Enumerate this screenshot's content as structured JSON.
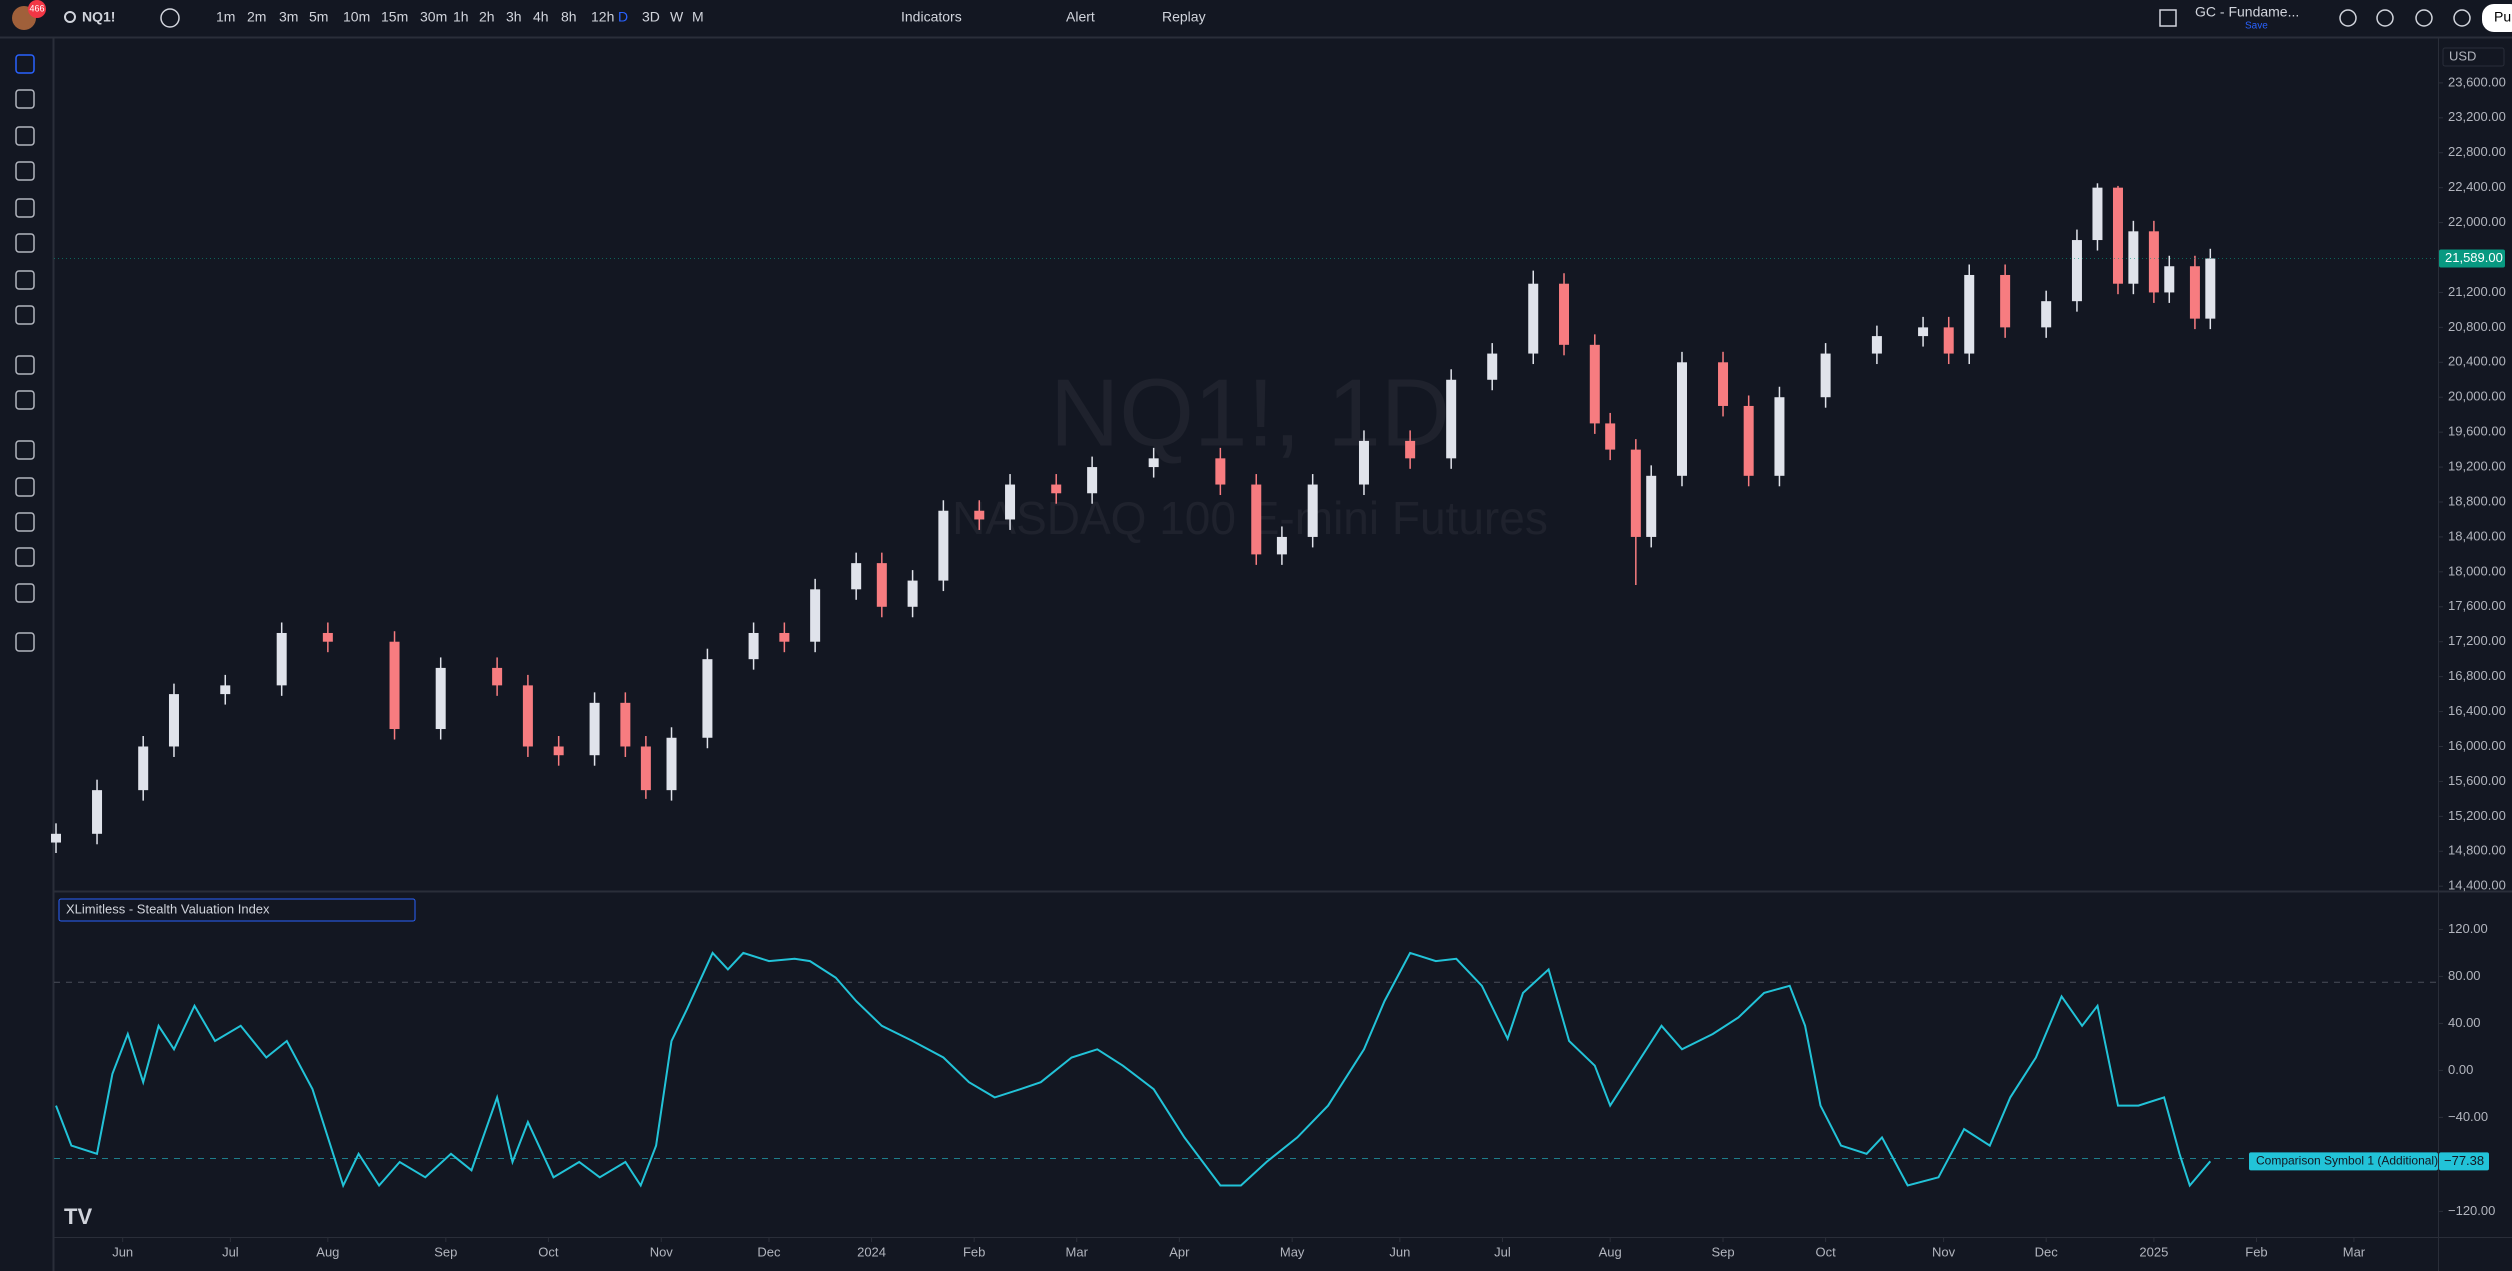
{
  "toolbar": {
    "badge": "466",
    "symbol": "NQ1!",
    "intervals": [
      "1m",
      "2m",
      "3m",
      "5m",
      "10m",
      "15m",
      "30m",
      "1h",
      "2h",
      "3h",
      "4h",
      "8h",
      "12h",
      "D",
      "3D",
      "W",
      "M"
    ],
    "active_interval": "D",
    "indicators": "Indicators",
    "alert": "Alert",
    "replay": "Replay",
    "layout": "GC - Fundame...",
    "layout_status": "Save",
    "publish": "Pu"
  },
  "chart_data": [
    {
      "type": "candlestick",
      "watermark": "NQ1!, 1D",
      "watermark_subtitle": "NASDAQ 100 E-mini Futures",
      "currency": "USD",
      "up_color": "#e0e3eb",
      "down_color": "#f77c80",
      "candles": {
        "x": [
          0,
          8,
          17,
          23,
          33,
          44,
          53,
          66,
          75,
          86,
          92,
          98,
          105,
          111,
          115,
          120,
          127,
          136,
          142,
          148,
          156,
          161,
          167,
          173,
          180,
          186,
          195,
          202,
          214,
          227,
          234,
          239,
          245,
          255,
          264,
          272,
          280,
          288,
          294,
          300,
          303,
          308,
          311,
          317,
          325,
          330,
          336,
          345,
          355,
          364,
          369,
          373,
          380,
          388,
          394,
          398,
          402,
          405,
          409,
          412,
          417,
          420
        ],
        "open": [
          14900,
          15000,
          15500,
          16000,
          16600,
          16700,
          17300,
          17200,
          16200,
          16900,
          16700,
          16000,
          15900,
          16500,
          16000,
          15500,
          16100,
          17000,
          17300,
          17200,
          17800,
          18100,
          17600,
          17900,
          18700,
          18600,
          19000,
          18900,
          19200,
          19300,
          19000,
          18200,
          18400,
          19000,
          19500,
          19300,
          20200,
          20500,
          21300,
          20600,
          19700,
          19400,
          18400,
          19100,
          20400,
          19900,
          19100,
          20000,
          20500,
          20700,
          20800,
          20500,
          21400,
          20800,
          21100,
          21800,
          22400,
          21300,
          21900,
          21200,
          21500,
          20900
        ],
        "high": [
          15120,
          15620,
          16120,
          16720,
          16820,
          17420,
          17420,
          17320,
          17020,
          17020,
          16820,
          16120,
          16620,
          16620,
          16120,
          16220,
          17120,
          17420,
          17420,
          17920,
          18220,
          18220,
          18020,
          18820,
          18820,
          19120,
          19120,
          19320,
          19420,
          19420,
          19120,
          18520,
          19120,
          19620,
          19620,
          20320,
          20620,
          21450,
          21420,
          20720,
          19820,
          19520,
          19220,
          20520,
          20520,
          20020,
          20120,
          20620,
          20820,
          20920,
          20920,
          21520,
          21520,
          21220,
          21920,
          22450,
          22420,
          22020,
          22020,
          21620,
          21620,
          21700
        ],
        "low": [
          14780,
          14880,
          15380,
          15880,
          16480,
          16580,
          17080,
          16080,
          16080,
          16580,
          15880,
          15780,
          15780,
          15880,
          15400,
          15380,
          15980,
          16880,
          17080,
          17080,
          17680,
          17480,
          17480,
          17780,
          18480,
          18480,
          18780,
          18780,
          19080,
          18880,
          18080,
          18080,
          18280,
          18880,
          19180,
          19180,
          20080,
          20380,
          20480,
          19580,
          19280,
          17850,
          18280,
          18980,
          19780,
          18980,
          18980,
          19880,
          20380,
          20580,
          20380,
          20380,
          20680,
          20680,
          20980,
          21680,
          21180,
          21180,
          21080,
          21080,
          20780,
          20780
        ],
        "close": [
          15000,
          15500,
          16000,
          16600,
          16700,
          17300,
          17200,
          16200,
          16900,
          16700,
          16000,
          15900,
          16500,
          16000,
          15500,
          16100,
          17000,
          17300,
          17200,
          17800,
          18100,
          17600,
          17900,
          18700,
          18600,
          19000,
          18900,
          19200,
          19300,
          19000,
          18200,
          18400,
          19000,
          19500,
          19300,
          20200,
          20500,
          21300,
          20600,
          19700,
          19400,
          18400,
          19100,
          20400,
          19900,
          19100,
          20000,
          20500,
          20700,
          20800,
          20500,
          21400,
          20800,
          21100,
          21800,
          22400,
          21300,
          21900,
          21200,
          21500,
          20900,
          21589
        ]
      },
      "last_price": 21589,
      "last_price_label": "21,589.00",
      "xlim": [
        0,
        464
      ],
      "ylim": [
        14345,
        24114
      ],
      "grid": false,
      "yticks": [
        {
          "value": 23600,
          "label": "23,600.00"
        },
        {
          "value": 23200,
          "label": "23,200.00"
        },
        {
          "value": 22800,
          "label": "22,800.00"
        },
        {
          "value": 22400,
          "label": "22,400.00"
        },
        {
          "value": 22000,
          "label": "22,000.00"
        },
        {
          "value": 21200,
          "label": "21,200.00"
        },
        {
          "value": 20800,
          "label": "20,800.00"
        },
        {
          "value": 20400,
          "label": "20,400.00"
        },
        {
          "value": 20000,
          "label": "20,000.00"
        },
        {
          "value": 19600,
          "label": "19,600.00"
        },
        {
          "value": 19200,
          "label": "19,200.00"
        },
        {
          "value": 18800,
          "label": "18,800.00"
        },
        {
          "value": 18400,
          "label": "18,400.00"
        },
        {
          "value": 18000,
          "label": "18,000.00"
        },
        {
          "value": 17600,
          "label": "17,600.00"
        },
        {
          "value": 17200,
          "label": "17,200.00"
        },
        {
          "value": 16800,
          "label": "16,800.00"
        },
        {
          "value": 16400,
          "label": "16,400.00"
        },
        {
          "value": 16000,
          "label": "16,000.00"
        },
        {
          "value": 15600,
          "label": "15,600.00"
        },
        {
          "value": 15200,
          "label": "15,200.00"
        },
        {
          "value": 14800,
          "label": "14,800.00"
        },
        {
          "value": 14400,
          "label": "14,400.00"
        }
      ]
    },
    {
      "type": "line",
      "name": "XLimitless - Stealth Valuation Index",
      "series": [
        {
          "name": "Comparison Symbol 1 (Additional)",
          "color": "#22c3d8",
          "x": [
            0,
            3,
            8,
            11,
            14,
            17,
            20,
            23,
            27,
            31,
            36,
            41,
            45,
            50,
            53,
            56,
            59,
            63,
            67,
            72,
            77,
            81,
            86,
            89,
            92,
            97,
            102,
            106,
            111,
            114,
            117,
            120,
            123,
            128,
            131,
            134,
            139,
            144,
            147,
            152,
            156,
            161,
            167,
            173,
            178,
            183,
            188,
            192,
            198,
            203,
            208,
            214,
            220,
            227,
            231,
            236,
            242,
            248,
            255,
            259,
            264,
            269,
            273,
            278,
            283,
            286,
            291,
            295,
            300,
            303,
            308,
            313,
            317,
            323,
            328,
            333,
            338,
            341,
            344,
            348,
            353,
            356,
            361,
            367,
            372,
            377,
            381,
            386,
            391,
            395,
            398,
            402,
            406,
            411,
            414,
            416,
            420
          ],
          "values": [
            -30,
            -64,
            -71,
            -3,
            31,
            -10,
            38,
            18,
            55,
            25,
            38,
            11,
            25,
            -16,
            -57,
            -98,
            -71,
            -98,
            -78,
            -91,
            -71,
            -85,
            -23,
            -78,
            -44,
            -91,
            -78,
            -91,
            -78,
            -98,
            -64,
            25,
            52,
            100,
            86,
            100,
            93,
            95,
            93,
            79,
            59,
            38,
            25,
            11,
            -10,
            -23,
            -16,
            -10,
            11,
            18,
            4,
            -16,
            -57,
            -98,
            -98,
            -78,
            -57,
            -30,
            18,
            59,
            100,
            93,
            95,
            72,
            27,
            66,
            86,
            25,
            4,
            -30,
            4,
            38,
            18,
            31,
            45,
            66,
            72,
            38,
            -30,
            -64,
            -71,
            -57,
            -98,
            -91,
            -50,
            -64,
            -23,
            11,
            63,
            38,
            55,
            -30,
            -30,
            -23,
            -71,
            -98,
            -77.38
          ]
        }
      ],
      "last_value_label": "−77.38",
      "levels": [
        75,
        -75
      ],
      "xlim": [
        0,
        464
      ],
      "ylim": [
        -141.8,
        152.7
      ],
      "yticks": [
        {
          "value": 120,
          "label": "120.00"
        },
        {
          "value": 80,
          "label": "80.00"
        },
        {
          "value": 40,
          "label": "40.00"
        },
        {
          "value": 0,
          "label": "0.00"
        },
        {
          "value": -40,
          "label": "−40.00"
        },
        {
          "value": -120,
          "label": "−120.00"
        }
      ],
      "xticks": [
        {
          "value": 13,
          "label": "Jun"
        },
        {
          "value": 34,
          "label": "Jul"
        },
        {
          "value": 53,
          "label": "Aug"
        },
        {
          "value": 76,
          "label": "Sep"
        },
        {
          "value": 96,
          "label": "Oct"
        },
        {
          "value": 118,
          "label": "Nov"
        },
        {
          "value": 139,
          "label": "Dec"
        },
        {
          "value": 159,
          "label": "2024"
        },
        {
          "value": 179,
          "label": "Feb"
        },
        {
          "value": 199,
          "label": "Mar"
        },
        {
          "value": 219,
          "label": "Apr"
        },
        {
          "value": 241,
          "label": "May"
        },
        {
          "value": 262,
          "label": "Jun"
        },
        {
          "value": 282,
          "label": "Jul"
        },
        {
          "value": 303,
          "label": "Aug"
        },
        {
          "value": 325,
          "label": "Sep"
        },
        {
          "value": 345,
          "label": "Oct"
        },
        {
          "value": 368,
          "label": "Nov"
        },
        {
          "value": 388,
          "label": "Dec"
        },
        {
          "value": 409,
          "label": "2025"
        },
        {
          "value": 429,
          "label": "Feb"
        },
        {
          "value": 448,
          "label": "Mar"
        }
      ]
    }
  ]
}
